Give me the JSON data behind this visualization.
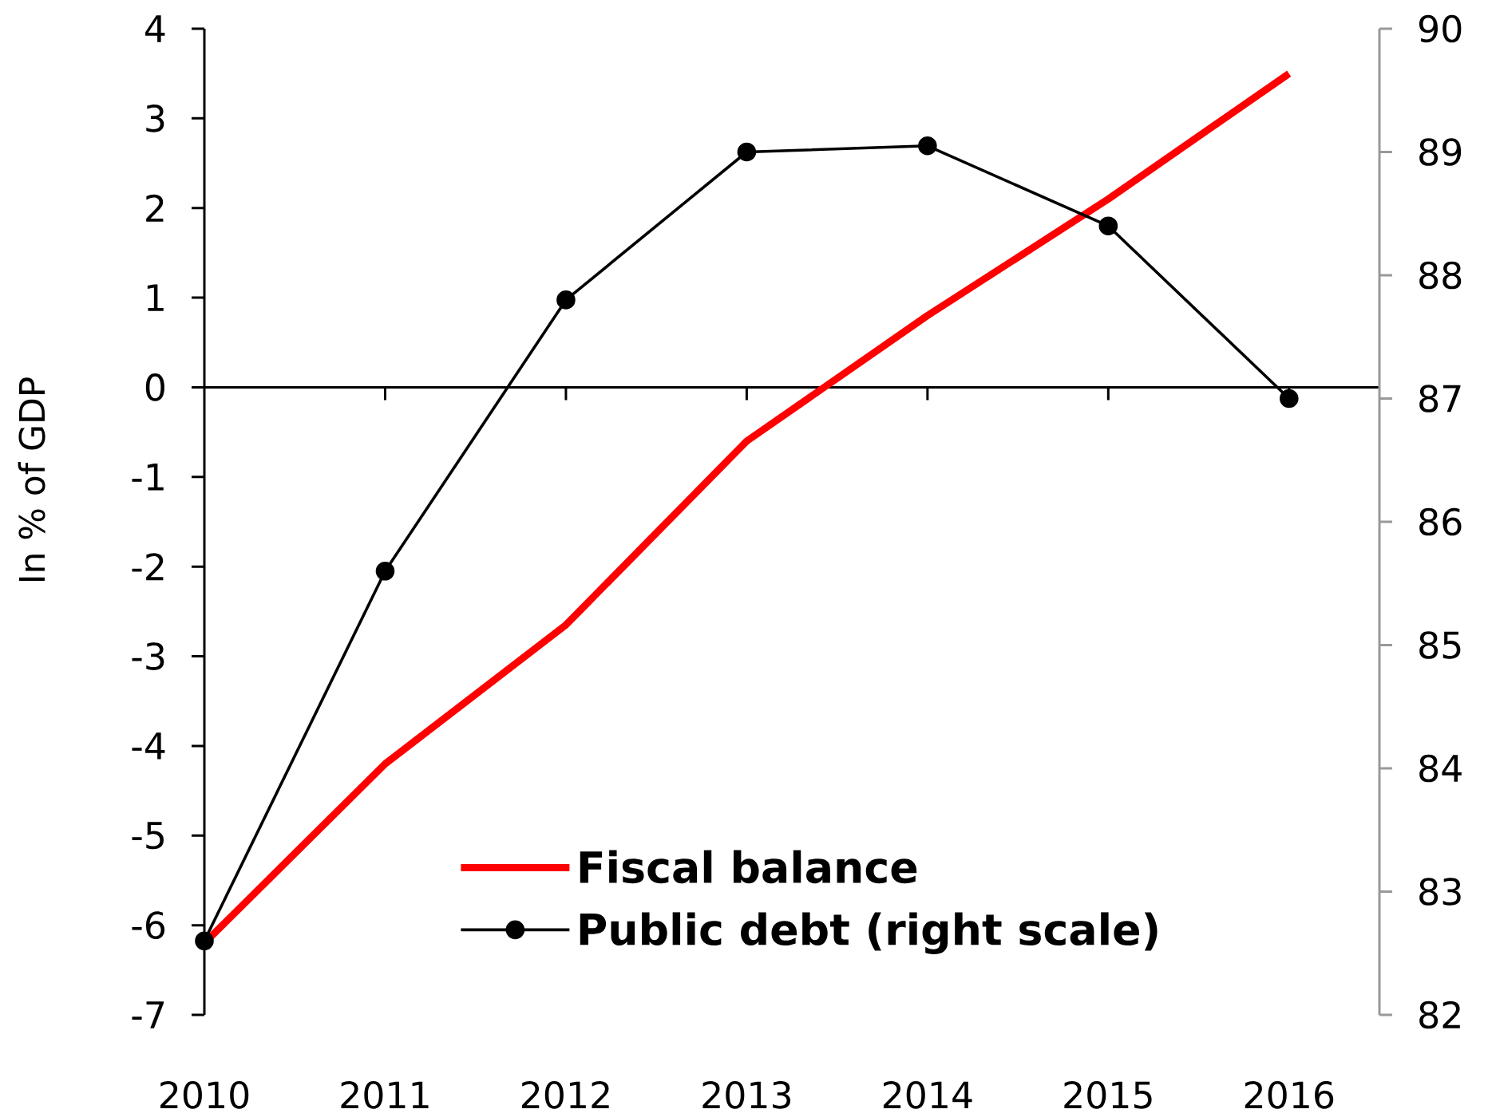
{
  "chart_data": {
    "type": "line",
    "ylabel": "In % of GDP",
    "categories": [
      "2010",
      "2011",
      "2012",
      "2013",
      "2014",
      "2015",
      "2016"
    ],
    "series": [
      {
        "name": "Fiscal balance",
        "color": "#ff0000",
        "marker": "none",
        "values": [
          -6.2,
          -4.2,
          -2.65,
          -0.6,
          0.8,
          2.1,
          3.5
        ]
      },
      {
        "name": "Public debt (right scale)",
        "color": "#000000",
        "marker": "circle",
        "axis": "y2",
        "values": [
          82.6,
          85.6,
          87.8,
          89.0,
          89.05,
          88.4,
          87.0
        ]
      }
    ],
    "ylim": [
      -7,
      4
    ],
    "yticks": [
      -7,
      -6,
      -5,
      -4,
      -3,
      -2,
      -1,
      0,
      1,
      2,
      3,
      4
    ],
    "y2lim": [
      82,
      90
    ],
    "y2ticks": [
      82,
      83,
      84,
      85,
      86,
      87,
      88,
      89,
      90
    ],
    "legend": "bottom"
  }
}
